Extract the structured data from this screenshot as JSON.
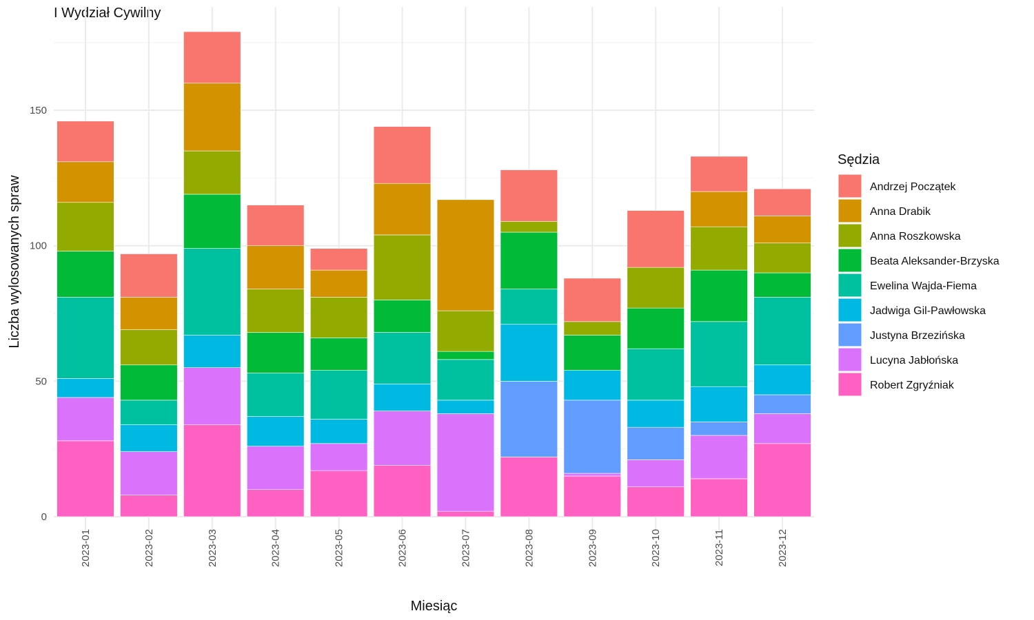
{
  "chart_data": {
    "type": "bar",
    "stacked": true,
    "title": "I Wydział Cywilny",
    "xlabel": "Miesiąc",
    "ylabel": "Liczba wylosowanych spraw",
    "ylim": [
      0,
      180
    ],
    "yticks": [
      0,
      50,
      100,
      150
    ],
    "grid": true,
    "legend_title": "Sędzia",
    "legend_position": "right",
    "categories": [
      "2023-01",
      "2023-02",
      "2023-03",
      "2023-04",
      "2023-05",
      "2023-06",
      "2023-07",
      "2023-08",
      "2023-09",
      "2023-10",
      "2023-11",
      "2023-12"
    ],
    "series": [
      {
        "name": "Robert Zgryźniak",
        "color": "#FF61C3",
        "values": [
          28,
          8,
          34,
          10,
          17,
          19,
          2,
          22,
          15,
          11,
          14,
          27
        ]
      },
      {
        "name": "Lucyna Jabłońska",
        "color": "#DB72FB",
        "values": [
          16,
          16,
          21,
          16,
          10,
          20,
          36,
          0,
          1,
          10,
          16,
          11
        ]
      },
      {
        "name": "Justyna Brzezińska",
        "color": "#619CFF",
        "values": [
          0,
          0,
          0,
          0,
          0,
          0,
          0,
          28,
          27,
          12,
          5,
          7
        ]
      },
      {
        "name": "Jadwiga Gil-Pawłowska",
        "color": "#00B9E3",
        "values": [
          7,
          10,
          12,
          11,
          9,
          10,
          5,
          21,
          11,
          10,
          13,
          11
        ]
      },
      {
        "name": "Ewelina Wajda-Fiema",
        "color": "#00C19F",
        "values": [
          30,
          9,
          32,
          16,
          18,
          19,
          15,
          13,
          0,
          19,
          24,
          25
        ]
      },
      {
        "name": "Beata Aleksander-Brzyska",
        "color": "#00BA38",
        "values": [
          17,
          13,
          20,
          15,
          12,
          12,
          3,
          21,
          13,
          15,
          19,
          9
        ]
      },
      {
        "name": "Anna Roszkowska",
        "color": "#93AA00",
        "values": [
          18,
          13,
          16,
          16,
          15,
          24,
          15,
          4,
          5,
          15,
          16,
          11
        ]
      },
      {
        "name": "Anna Drabik",
        "color": "#D39200",
        "values": [
          15,
          12,
          25,
          16,
          10,
          19,
          41,
          0,
          0,
          0,
          13,
          10
        ]
      },
      {
        "name": "Andrzej Początek",
        "color": "#F8766D",
        "values": [
          15,
          16,
          19,
          15,
          8,
          21,
          0,
          19,
          16,
          21,
          13,
          10
        ]
      }
    ],
    "legend_order": [
      "Andrzej Początek",
      "Anna Drabik",
      "Anna Roszkowska",
      "Beata Aleksander-Brzyska",
      "Ewelina Wajda-Fiema",
      "Jadwiga Gil-Pawłowska",
      "Justyna Brzezińska",
      "Lucyna Jabłońska",
      "Robert Zgryźniak"
    ]
  }
}
